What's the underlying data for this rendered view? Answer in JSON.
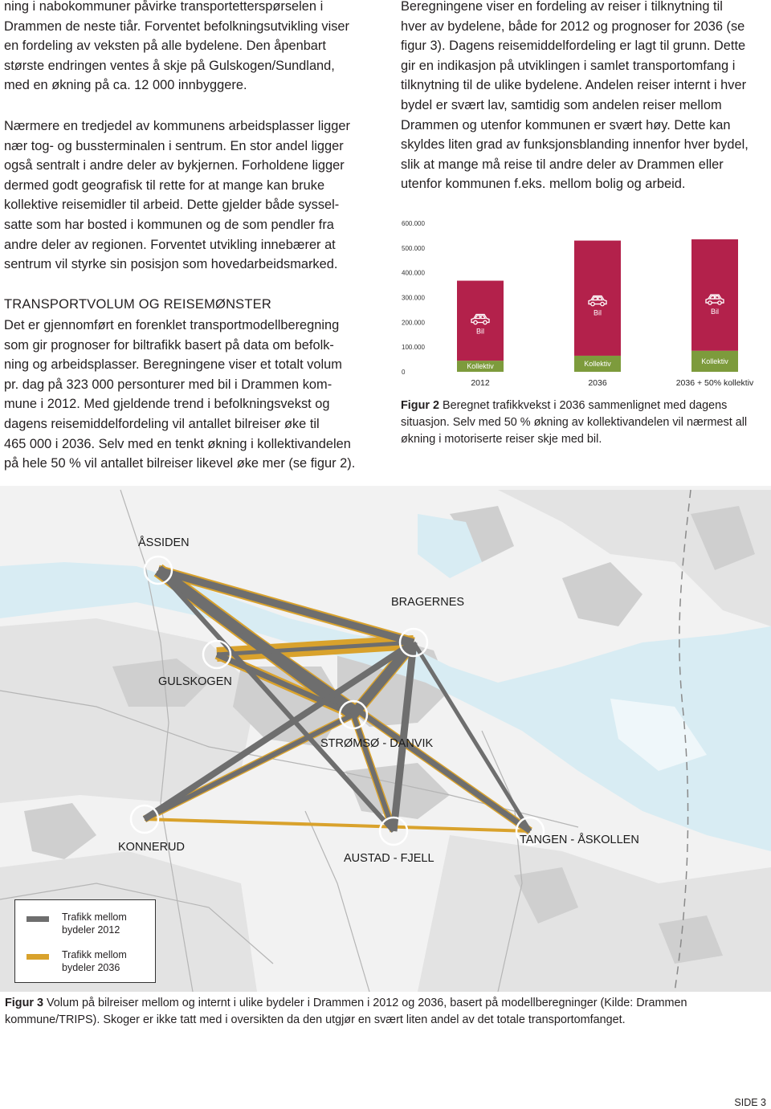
{
  "left_column": {
    "paragraphs": [
      "ning i nabokommuner påvirke transportetterspørselen i\nDrammen de neste tiår. Forventet befolkningsutvikling viser\nen fordeling av veksten på alle bydelene. Den åpenbart\nstørste endringen ventes å skje på Gulskogen/Sundland,\nmed en økning på ca. 12 000 innbyggere.",
      "Nærmere en tredjedel av kommunens arbeidsplasser ligger\nnær tog- og bussterminalen i sentrum. En stor andel ligger\nogså sentralt i andre deler av bykjernen. Forholdene ligger\ndermed godt geografisk til rette for at mange kan bruke\nkollektive reisemidler til arbeid. Dette gjelder både syssel-\nsatte som har bosted i kommunen og de som pendler fra\nandre deler av regionen. Forventet utvikling innebærer at\nsentrum vil styrke sin posisjon som hovedarbeidsmarked."
    ],
    "heading": "TRANSPORTVOLUM OG REISEMØNSTER",
    "section_paragraph": "Det er gjennomført en forenklet transportmodellberegning\nsom gir prognoser for biltrafikk basert på data om befolk-\nning og arbeidsplasser. Beregningene viser et totalt volum\npr. dag på 323 000 personturer med bil i Drammen kom-\nmune i 2012. Med gjeldende trend i befolkningsvekst og\ndagens reisemiddelfordeling vil antallet bilreiser øke til\n465 000 i 2036. Selv med en tenkt økning i kollektivandelen\npå hele 50 % vil antallet bilreiser likevel øke mer (se figur 2)."
  },
  "right_column": {
    "paragraph": "Beregningene viser en fordeling av reiser i tilknytning til\nhver av bydelene, både for 2012 og prognoser for 2036 (se\nfigur 3). Dagens reisemiddelfordeling er lagt til grunn. Dette\ngir en indikasjon på utviklingen i samlet transportomfang i\ntilknytning til de ulike bydelene. Andelen reiser internt i hver\nbydel er svært lav, samtidig som andelen reiser mellom\nDrammen og utenfor kommunen er svært høy. Dette kan\nskyldes liten grad av funksjonsblanding innenfor hver bydel,\nslik at mange må reise til andre deler av Drammen eller\nutenfor kommunen f.eks. mellom bolig og arbeid."
  },
  "chart_data": {
    "type": "bar",
    "stacked": true,
    "categories": [
      "2012",
      "2036",
      "2036 + 50% kollektiv"
    ],
    "series": [
      {
        "name": "Kollektiv",
        "color": "#7d9b3c",
        "values": [
          45000,
          65000,
          85000
        ]
      },
      {
        "name": "Bil",
        "color": "#b3214b",
        "values": [
          323000,
          465000,
          450000
        ]
      }
    ],
    "ylim": [
      0,
      600000
    ],
    "yticks": [
      0,
      {
        "value": 100000,
        "label": "100.000"
      },
      {
        "value": 200000,
        "label": "200.000"
      },
      {
        "value": 300000,
        "label": "300.000"
      },
      {
        "value": 400000,
        "label": "400.000"
      },
      {
        "value": 500000,
        "label": "500.000"
      },
      {
        "value": 600000,
        "label": "600.000"
      }
    ],
    "grid": false
  },
  "figure2": {
    "label": "Figur 2",
    "text": "Beregnet trafikkvekst i 2036 sammenlignet med dagens situasjon. Selv med 50 % økning av kollektivandelen vil nærmest all økning i motoriserte reiser skje med bil."
  },
  "map": {
    "labels": [
      "ÅSSIDEN",
      "BRAGERNES",
      "GULSKOGEN",
      "STRØMSØ - DANVIK",
      "KONNERUD",
      "AUSTAD - FJELL",
      "TANGEN - ÅSKOLLEN"
    ],
    "legend": [
      "Trafikk mellom bydeler 2012",
      "Trafikk mellom bydeler 2036"
    ]
  },
  "figure3": {
    "label": "Figur 3",
    "text": "Volum på bilreiser mellom og internt i ulike bydeler i Drammen i 2012 og 2036, basert på modellberegninger (Kilde: Drammen kommune/TRIPS). Skoger er ikke tatt med i oversikten da den utgjør en svært liten andel av det totale transportomfanget."
  },
  "footer": {
    "page": "SIDE 3"
  }
}
